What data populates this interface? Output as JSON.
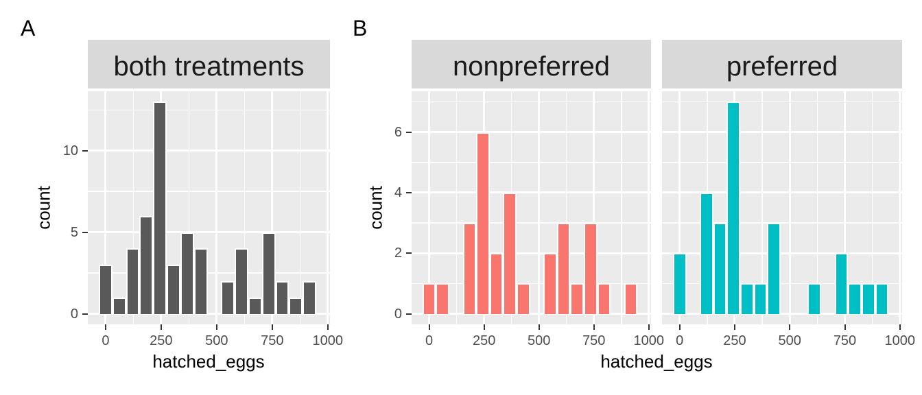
{
  "figure": {
    "section_labels": [
      "A",
      "B"
    ],
    "colors": {
      "background": "#FFFFFF",
      "panel_background": "#EBEBEB",
      "strip_background": "#D9D9D9",
      "gridline": "#FFFFFF",
      "bar_outline": "#FFFFFF",
      "tick_mark": "#333333",
      "tick_label": "#4D4D4D",
      "axis_title": "#000000",
      "strip_text": "#1A1A1A"
    }
  },
  "chart_data": {
    "type": "bar",
    "subtype": "histogram",
    "x_label": "hatched_eggs",
    "y_label": "count",
    "x_ticks": [
      0,
      250,
      500,
      750,
      1000
    ],
    "x_minor_ticks": [
      125,
      375,
      625,
      875
    ],
    "xlim": [
      -80,
      1010
    ],
    "bin_width": 61.2,
    "bin_centers": [
      0,
      61.2,
      122.4,
      183.6,
      244.8,
      306.0,
      367.2,
      428.4,
      489.6,
      550.8,
      612.0,
      673.2,
      734.4,
      795.6,
      856.8,
      918.0
    ],
    "grid": "on",
    "legend": "none",
    "panels": [
      {
        "section": "A",
        "title": "both treatments",
        "color": "#595959",
        "counts": [
          3,
          1,
          4,
          6,
          13,
          3,
          5,
          4,
          0,
          2,
          4,
          1,
          5,
          2,
          1,
          2
        ],
        "y_ticks": [
          0,
          5,
          10
        ],
        "ylim": [
          -0.65,
          13.65
        ],
        "show_y_axis": true
      },
      {
        "section": "B",
        "title": "nonpreferred",
        "color": "#F8766D",
        "counts": [
          1,
          1,
          0,
          3,
          6,
          2,
          4,
          1,
          0,
          2,
          3,
          1,
          3,
          1,
          0,
          1
        ],
        "y_ticks": [
          0,
          2,
          4,
          6
        ],
        "ylim": [
          -0.35,
          7.35
        ],
        "show_y_axis": true
      },
      {
        "section": "B",
        "title": "preferred",
        "color": "#00BFC4",
        "counts": [
          2,
          0,
          4,
          3,
          7,
          1,
          1,
          3,
          0,
          0,
          1,
          0,
          2,
          1,
          1,
          1
        ],
        "y_ticks": [
          0,
          2,
          4,
          6
        ],
        "ylim": [
          -0.35,
          7.35
        ],
        "show_y_axis": false
      }
    ]
  }
}
